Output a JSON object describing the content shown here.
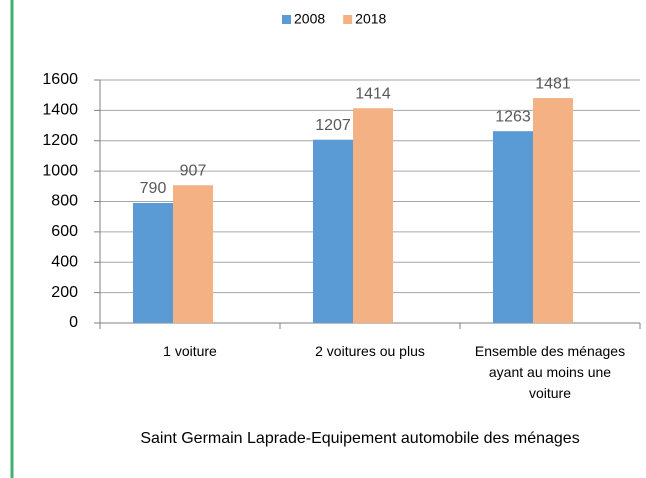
{
  "chart_data": {
    "type": "bar",
    "title": "Saint Germain Laprade-Equipement automobile des ménages",
    "categories": [
      "1 voiture",
      "2 voitures ou plus",
      "Ensemble des ménages ayant au moins une voiture"
    ],
    "series": [
      {
        "name": "2008",
        "color": "#5b9bd5",
        "values": [
          790,
          1207,
          1263
        ]
      },
      {
        "name": "2018",
        "color": "#f4b183",
        "values": [
          907,
          1414,
          1481
        ]
      }
    ],
    "ylim": [
      0,
      1600
    ],
    "yticks": [
      0,
      200,
      400,
      600,
      800,
      1000,
      1200,
      1400,
      1600
    ],
    "grid": true,
    "legend": "top"
  }
}
